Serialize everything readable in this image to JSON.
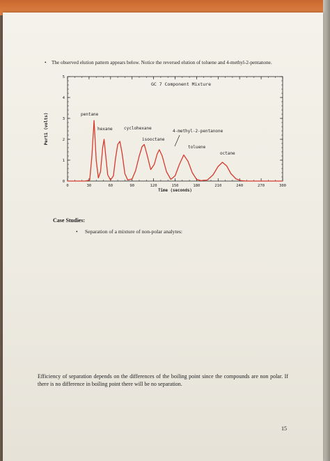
{
  "document": {
    "intro_bullet": "•",
    "intro_text": "The observed elution pattern appears below. Notice the reversed elution of toluene and 4-methyl-2-pentanone.",
    "case_studies_heading": "Case Studies:",
    "case_bullet": "•",
    "case_bullet_text": "Separation of a mixture of non-polar analytes:",
    "efficiency_text": "Efficiency of separation depends on the differences of the boiling point since the compounds are non polar. If there is no difference in boiling point there will be no separation.",
    "page_number": "15"
  },
  "colors": {
    "trace": "#d63a2e",
    "axis": "#222222",
    "paper": "#f1efe7"
  },
  "chart_data": {
    "type": "line",
    "title": "GC 7 Component Mixture",
    "xlabel": "Time (seconds)",
    "ylabel": "Pert1 (volts)",
    "xlim": [
      0,
      300
    ],
    "ylim": [
      0,
      5
    ],
    "xticks": [
      0,
      30,
      60,
      90,
      120,
      150,
      180,
      210,
      240,
      270,
      300
    ],
    "yticks": [
      0,
      1,
      2,
      3,
      4,
      5
    ],
    "grid": false,
    "peaks": [
      {
        "label": "pentane",
        "x": 37,
        "y": 2.9
      },
      {
        "label": "hexane",
        "x": 51,
        "y": 2.0
      },
      {
        "label": "cyclohexane",
        "x": 73,
        "y": 1.9
      },
      {
        "label": "isooctane",
        "x": 107,
        "y": 1.75
      },
      {
        "label": "4-methyl-2-pentanone",
        "x": 128,
        "y": 1.5
      },
      {
        "label": "toluene",
        "x": 162,
        "y": 1.25
      },
      {
        "label": "octane",
        "x": 216,
        "y": 0.9
      }
    ],
    "series": [
      {
        "x": [
          0,
          25,
          31,
          34,
          37,
          40,
          43,
          46,
          49,
          51,
          53,
          56,
          60,
          64,
          67,
          70,
          73,
          76,
          80,
          84,
          90,
          95,
          100,
          104,
          107,
          111,
          116,
          121,
          125,
          128,
          132,
          138,
          144,
          150,
          156,
          162,
          168,
          174,
          180,
          186,
          195,
          203,
          210,
          216,
          222,
          228,
          235,
          242,
          250,
          260,
          280,
          300
        ],
        "y": [
          0.0,
          0.0,
          0.05,
          1.2,
          2.9,
          1.0,
          0.15,
          0.45,
          1.6,
          2.0,
          1.3,
          0.3,
          0.05,
          0.25,
          1.1,
          1.75,
          1.9,
          1.35,
          0.35,
          0.05,
          0.1,
          0.5,
          1.2,
          1.65,
          1.75,
          1.25,
          0.55,
          0.8,
          1.3,
          1.5,
          1.2,
          0.45,
          0.08,
          0.25,
          0.8,
          1.25,
          0.95,
          0.4,
          0.08,
          0.02,
          0.05,
          0.3,
          0.7,
          0.9,
          0.72,
          0.35,
          0.1,
          0.02,
          0.0,
          0.0,
          0.0,
          0.0
        ]
      }
    ]
  }
}
